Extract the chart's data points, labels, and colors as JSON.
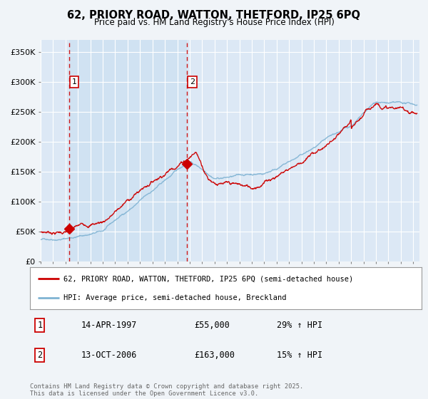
{
  "title": "62, PRIORY ROAD, WATTON, THETFORD, IP25 6PQ",
  "subtitle": "Price paid vs. HM Land Registry's House Price Index (HPI)",
  "background_color": "#f0f4f8",
  "plot_bg_color": "#dce8f5",
  "shade_color": "#c8dff0",
  "legend_line1": "62, PRIORY ROAD, WATTON, THETFORD, IP25 6PQ (semi-detached house)",
  "legend_line2": "HPI: Average price, semi-detached house, Breckland",
  "transaction1_date": "14-APR-1997",
  "transaction1_price": "£55,000",
  "transaction1_hpi": "29% ↑ HPI",
  "transaction1_year": 1997.29,
  "transaction2_date": "13-OCT-2006",
  "transaction2_price": "£163,000",
  "transaction2_hpi": "15% ↑ HPI",
  "transaction2_year": 2006.79,
  "copyright": "Contains HM Land Registry data © Crown copyright and database right 2025.\nThis data is licensed under the Open Government Licence v3.0.",
  "price_color": "#cc0000",
  "hpi_color": "#7fb3d3",
  "vline_color": "#cc0000",
  "marker1_x": 1997.29,
  "marker1_y": 55000,
  "marker2_x": 2006.79,
  "marker2_y": 163000,
  "yticks": [
    0,
    50000,
    100000,
    150000,
    200000,
    250000,
    300000,
    350000
  ],
  "ytick_labels": [
    "£0",
    "£50K",
    "£100K",
    "£150K",
    "£200K",
    "£250K",
    "£300K",
    "£350K"
  ],
  "xmin": 1995.0,
  "xmax": 2025.5,
  "ylim_max": 370000
}
